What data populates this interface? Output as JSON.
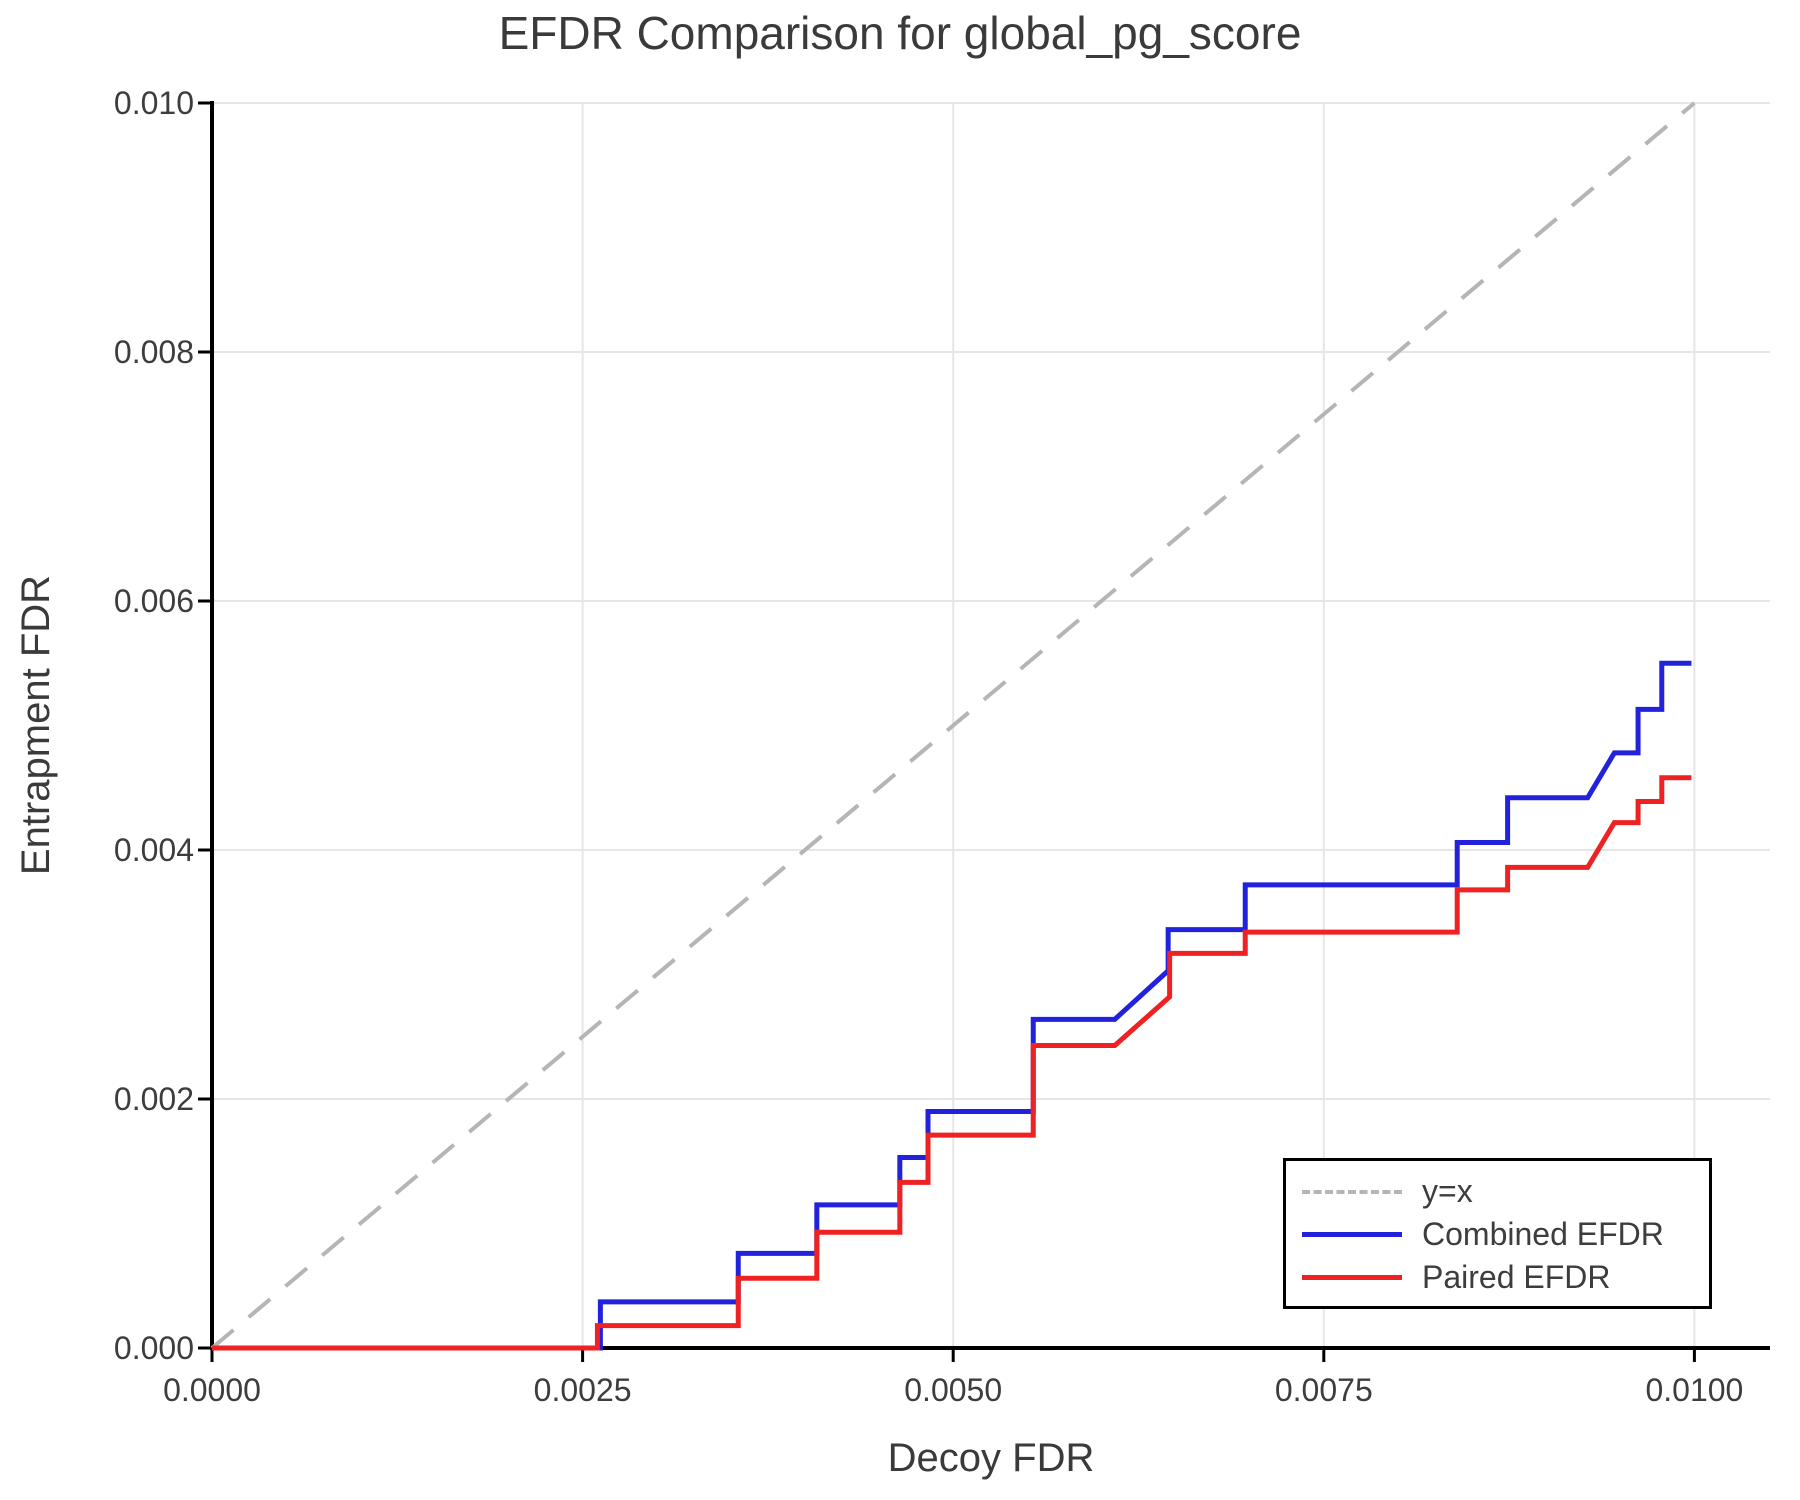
{
  "title": "EFDR Comparison for global_pg_score",
  "axes": {
    "x": {
      "label": "Decoy FDR",
      "tick_labels": [
        "0.0000",
        "0.0025",
        "0.0050",
        "0.0075",
        "0.0100"
      ],
      "tick_values": [
        0,
        0.0025,
        0.005,
        0.0075,
        0.01
      ]
    },
    "y": {
      "label": "Entrapment FDR",
      "tick_labels": [
        "0.000",
        "0.002",
        "0.004",
        "0.006",
        "0.008",
        "0.010"
      ],
      "tick_values": [
        0,
        0.002,
        0.004,
        0.006,
        0.008,
        0.01
      ]
    }
  },
  "legend": {
    "entries": [
      {
        "label": "y=x",
        "style": "dashed",
        "color": "#b5b5b5"
      },
      {
        "label": "Combined EFDR",
        "style": "solid",
        "color": "#2222dd"
      },
      {
        "label": "Paired EFDR",
        "style": "solid",
        "color": "#ee2222"
      }
    ]
  },
  "colors": {
    "grid": "#e6e6e6",
    "axis": "#000000",
    "text": "#3d3d3d",
    "identity_line": "#b5b5b5",
    "combined": "#2222dd",
    "paired": "#ee2222"
  },
  "chart_data": {
    "type": "line",
    "title": "EFDR Comparison for global_pg_score",
    "xlabel": "Decoy FDR",
    "ylabel": "Entrapment FDR",
    "xlim": [
      0,
      0.01051
    ],
    "ylim": [
      0,
      0.01
    ],
    "grid": true,
    "legend_position": "lower right",
    "series": [
      {
        "name": "y=x",
        "color": "#b5b5b5",
        "dash": true,
        "width": 4,
        "x": [
          0,
          0.01
        ],
        "y": [
          0,
          0.01
        ]
      },
      {
        "name": "Combined EFDR",
        "color": "#2222dd",
        "dash": false,
        "width": 5,
        "x": [
          0,
          0.00262,
          0.00262,
          0.00355,
          0.00355,
          0.00408,
          0.00408,
          0.00464,
          0.00464,
          0.00483,
          0.00483,
          0.00554,
          0.00554,
          0.00609,
          0.00645,
          0.00645,
          0.00697,
          0.00697,
          0.0084,
          0.0084,
          0.00874,
          0.00874,
          0.00928,
          0.00946,
          0.00962,
          0.00962,
          0.00978,
          0.00978,
          0.00998
        ],
        "y": [
          0,
          0,
          0.00037,
          0.00037,
          0.00076,
          0.00076,
          0.00115,
          0.00115,
          0.00153,
          0.00153,
          0.0019,
          0.0019,
          0.00264,
          0.00264,
          0.00303,
          0.00336,
          0.00336,
          0.00372,
          0.00372,
          0.00406,
          0.00406,
          0.00442,
          0.00442,
          0.00478,
          0.00478,
          0.00513,
          0.00513,
          0.0055,
          0.0055
        ]
      },
      {
        "name": "Paired EFDR",
        "color": "#ee2222",
        "dash": false,
        "width": 5,
        "x": [
          0,
          0.0026,
          0.0026,
          0.00355,
          0.00355,
          0.00408,
          0.00408,
          0.00464,
          0.00464,
          0.00483,
          0.00483,
          0.00554,
          0.00554,
          0.00609,
          0.00646,
          0.00646,
          0.00697,
          0.00697,
          0.0084,
          0.0084,
          0.00874,
          0.00874,
          0.00928,
          0.00946,
          0.00962,
          0.00962,
          0.00978,
          0.00978,
          0.00998
        ],
        "y": [
          0,
          0,
          0.00018,
          0.00018,
          0.00056,
          0.00056,
          0.00093,
          0.00093,
          0.00133,
          0.00133,
          0.00171,
          0.00171,
          0.00243,
          0.00243,
          0.00282,
          0.00317,
          0.00317,
          0.00334,
          0.00334,
          0.00368,
          0.00368,
          0.00386,
          0.00386,
          0.00422,
          0.00422,
          0.00439,
          0.00439,
          0.00458,
          0.00458
        ]
      }
    ]
  }
}
